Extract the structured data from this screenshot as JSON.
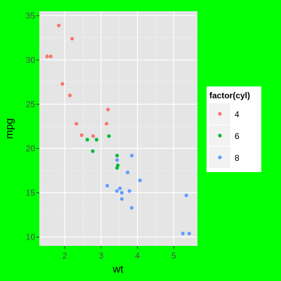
{
  "chart_data": {
    "type": "scatter",
    "title": "",
    "xlabel": "wt",
    "ylabel": "mpg",
    "xlim": [
      1.3,
      5.65
    ],
    "ylim": [
      9.0,
      35.5
    ],
    "x_ticks": [
      2,
      3,
      4,
      5
    ],
    "y_ticks": [
      10,
      15,
      20,
      25,
      30,
      35
    ],
    "x_tick_labels": [
      "2",
      "3",
      "4",
      "5"
    ],
    "y_tick_labels": [
      "10",
      "15",
      "20",
      "25",
      "30",
      "35"
    ],
    "grid": true,
    "legend": {
      "title": "factor(cyl)",
      "placement": "right",
      "entries": [
        "4",
        "6",
        "8"
      ]
    },
    "colors": {
      "4": "#F8766D",
      "6": "#00BA38",
      "8": "#619CFF"
    },
    "series": [
      {
        "name": "4",
        "points": [
          {
            "x": 1.513,
            "y": 30.4
          },
          {
            "x": 1.615,
            "y": 30.4
          },
          {
            "x": 1.835,
            "y": 33.9
          },
          {
            "x": 1.935,
            "y": 27.3
          },
          {
            "x": 2.14,
            "y": 26.0
          },
          {
            "x": 2.2,
            "y": 32.4
          },
          {
            "x": 2.32,
            "y": 22.8
          },
          {
            "x": 2.465,
            "y": 21.5
          },
          {
            "x": 2.78,
            "y": 21.4
          },
          {
            "x": 3.15,
            "y": 22.8
          },
          {
            "x": 3.19,
            "y": 24.4
          }
        ]
      },
      {
        "name": "6",
        "points": [
          {
            "x": 2.62,
            "y": 21.0
          },
          {
            "x": 2.77,
            "y": 19.7
          },
          {
            "x": 2.875,
            "y": 21.0
          },
          {
            "x": 3.215,
            "y": 21.4
          },
          {
            "x": 3.44,
            "y": 19.2
          },
          {
            "x": 3.44,
            "y": 17.8
          },
          {
            "x": 3.46,
            "y": 18.1
          }
        ]
      },
      {
        "name": "8",
        "points": [
          {
            "x": 3.17,
            "y": 15.8
          },
          {
            "x": 3.435,
            "y": 15.2
          },
          {
            "x": 3.44,
            "y": 18.7
          },
          {
            "x": 3.52,
            "y": 15.5
          },
          {
            "x": 3.57,
            "y": 14.3
          },
          {
            "x": 3.57,
            "y": 15.0
          },
          {
            "x": 3.73,
            "y": 17.3
          },
          {
            "x": 3.78,
            "y": 15.2
          },
          {
            "x": 3.84,
            "y": 13.3
          },
          {
            "x": 3.845,
            "y": 19.2
          },
          {
            "x": 4.07,
            "y": 16.4
          },
          {
            "x": 5.25,
            "y": 10.4
          },
          {
            "x": 5.345,
            "y": 14.7
          },
          {
            "x": 5.424,
            "y": 10.4
          }
        ]
      }
    ]
  }
}
